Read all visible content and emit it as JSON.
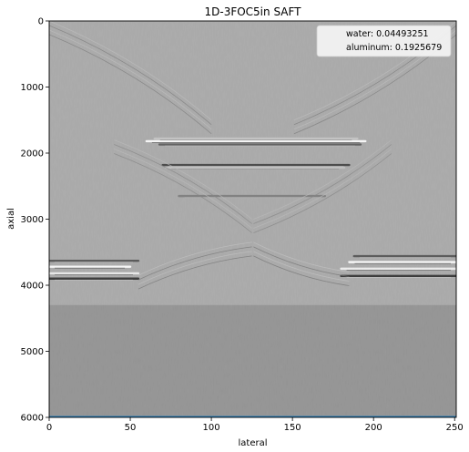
{
  "chart_data": {
    "type": "heatmap",
    "title": "1D-3FOC5in SAFT",
    "xlabel": "lateral",
    "ylabel": "axial",
    "xlim": [
      0,
      251
    ],
    "ylim": [
      6000,
      0
    ],
    "y_inverted": true,
    "x_ticks": [
      0,
      50,
      100,
      150,
      200,
      250
    ],
    "y_ticks": [
      0,
      1000,
      2000,
      3000,
      4000,
      5000,
      6000
    ],
    "colormap": "gray",
    "background_level": 0.66,
    "grid": false,
    "legend_placement": "top-right",
    "legend_entries": [
      "water: 0.04493251",
      "aluminum: 0.1925679"
    ],
    "features": [
      {
        "kind": "reflector",
        "x": [
          60,
          195
        ],
        "y": 1820,
        "intensity": 1.0
      },
      {
        "kind": "reflector",
        "x": [
          65,
          190
        ],
        "y": 1780,
        "intensity": 0.35
      },
      {
        "kind": "reflector",
        "x": [
          68,
          192
        ],
        "y": 1870,
        "intensity": -0.45
      },
      {
        "kind": "reflector",
        "x": [
          70,
          185
        ],
        "y": 2180,
        "intensity": -0.6
      },
      {
        "kind": "reflector",
        "x": [
          72,
          182
        ],
        "y": 2220,
        "intensity": 0.3
      },
      {
        "kind": "reflector",
        "x": [
          80,
          170
        ],
        "y": 2650,
        "intensity": -0.25
      },
      {
        "kind": "reflector",
        "x": [
          0,
          50
        ],
        "y": 3720,
        "intensity": 1.0
      },
      {
        "kind": "reflector",
        "x": [
          0,
          55
        ],
        "y": 3820,
        "intensity": 0.8
      },
      {
        "kind": "reflector",
        "x": [
          0,
          55
        ],
        "y": 3900,
        "intensity": -0.7
      },
      {
        "kind": "reflector",
        "x": [
          0,
          55
        ],
        "y": 3630,
        "intensity": -0.5
      },
      {
        "kind": "reflector",
        "x": [
          185,
          251
        ],
        "y": 3650,
        "intensity": 1.0
      },
      {
        "kind": "reflector",
        "x": [
          180,
          251
        ],
        "y": 3750,
        "intensity": 0.85
      },
      {
        "kind": "reflector",
        "x": [
          180,
          251
        ],
        "y": 3860,
        "intensity": -0.7
      },
      {
        "kind": "reflector",
        "x": [
          188,
          251
        ],
        "y": 3560,
        "intensity": -0.5
      },
      {
        "kind": "arc",
        "from": [
          0,
          0
        ],
        "to": [
          100,
          1500
        ],
        "intensity": 0.25
      },
      {
        "kind": "arc",
        "from": [
          251,
          0
        ],
        "to": [
          151,
          1500
        ],
        "intensity": 0.25
      },
      {
        "kind": "arc",
        "from": [
          40,
          1800
        ],
        "to": [
          125,
          3000
        ],
        "intensity": 0.2
      },
      {
        "kind": "arc",
        "from": [
          211,
          1800
        ],
        "to": [
          126,
          3000
        ],
        "intensity": 0.2
      },
      {
        "kind": "arc",
        "from": [
          55,
          3850
        ],
        "to": [
          125,
          3350
        ],
        "intensity": 0.3
      },
      {
        "kind": "arc",
        "from": [
          185,
          3800
        ],
        "to": [
          126,
          3350
        ],
        "intensity": 0.3
      },
      {
        "kind": "shade",
        "x": [
          0,
          251
        ],
        "y": [
          4300,
          6000
        ],
        "intensity": -0.12
      },
      {
        "kind": "line",
        "x": [
          0,
          251
        ],
        "y": 5990,
        "color": "#1f77b4"
      }
    ]
  }
}
